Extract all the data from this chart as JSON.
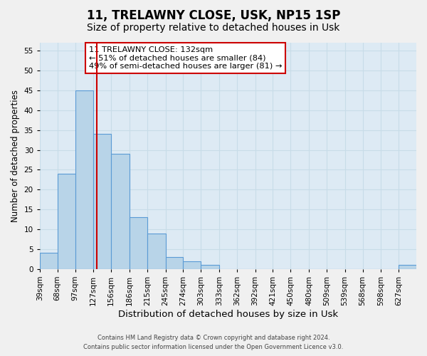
{
  "title": "11, TRELAWNY CLOSE, USK, NP15 1SP",
  "subtitle": "Size of property relative to detached houses in Usk",
  "xlabel": "Distribution of detached houses by size in Usk",
  "ylabel": "Number of detached properties",
  "bar_color": "#b8d4e8",
  "bar_edge_color": "#5b9bd5",
  "bin_edges": [
    39,
    68,
    97,
    127,
    156,
    186,
    215,
    245,
    274,
    303,
    333,
    362,
    392,
    421,
    450,
    480,
    509,
    539,
    568,
    598,
    627,
    656
  ],
  "bar_heights": [
    4,
    24,
    45,
    34,
    29,
    13,
    9,
    3,
    2,
    1,
    0,
    0,
    0,
    0,
    0,
    0,
    0,
    0,
    0,
    0,
    1
  ],
  "xtick_labels": [
    "39sqm",
    "68sqm",
    "97sqm",
    "127sqm",
    "156sqm",
    "186sqm",
    "215sqm",
    "245sqm",
    "274sqm",
    "303sqm",
    "333sqm",
    "362sqm",
    "392sqm",
    "421sqm",
    "450sqm",
    "480sqm",
    "509sqm",
    "539sqm",
    "568sqm",
    "598sqm",
    "627sqm"
  ],
  "vline_x": 132,
  "vline_color": "#cc0000",
  "ylim": [
    0,
    57
  ],
  "yticks": [
    0,
    5,
    10,
    15,
    20,
    25,
    30,
    35,
    40,
    45,
    50,
    55
  ],
  "annotation_title": "11 TRELAWNY CLOSE: 132sqm",
  "annotation_line1": "← 51% of detached houses are smaller (84)",
  "annotation_line2": "49% of semi-detached houses are larger (81) →",
  "annotation_box_color": "#ffffff",
  "annotation_box_edge": "#cc0000",
  "footer_line1": "Contains HM Land Registry data © Crown copyright and database right 2024.",
  "footer_line2": "Contains public sector information licensed under the Open Government Licence v3.0.",
  "grid_color": "#c8dce8",
  "background_color": "#ddeaf4",
  "title_fontsize": 12,
  "subtitle_fontsize": 10,
  "tick_label_size": 7.5
}
